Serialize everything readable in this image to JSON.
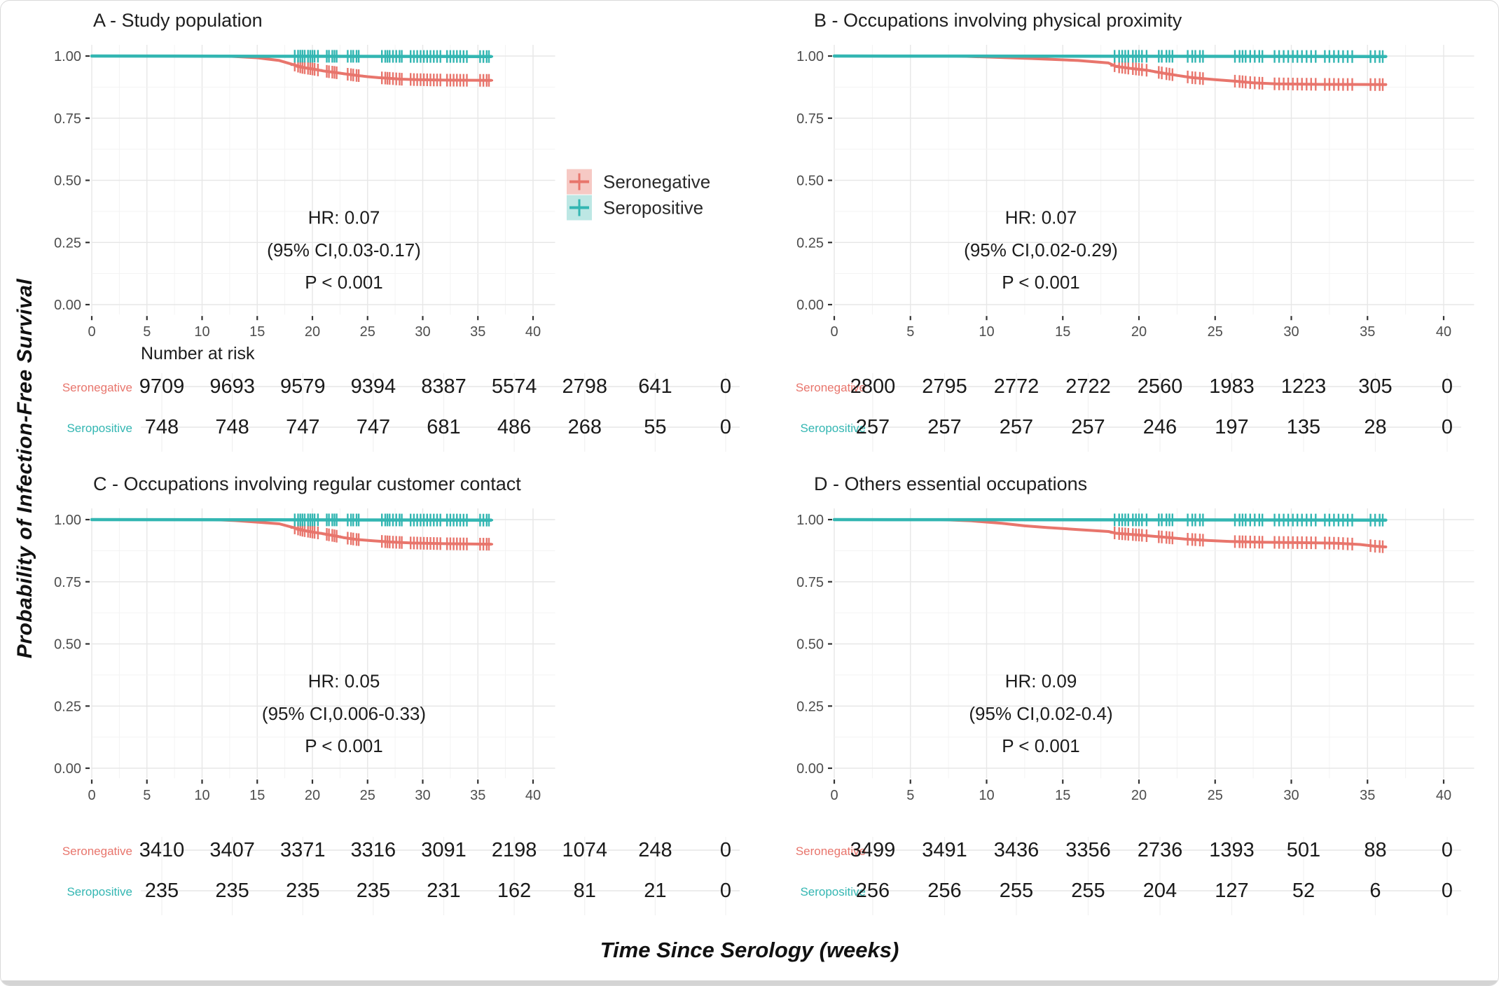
{
  "figure": {
    "ylabel": "Probability of Infection-Free Survival",
    "xlabel": "Time Since Serology (weeks)",
    "number_at_risk_label": "Number at risk",
    "colors": {
      "seronegative": "#E8756C",
      "seropositive": "#33B6B2",
      "seronegative_fill": "#F6C9C4",
      "seropositive_fill": "#BDE7E4",
      "tick_text": "#4d4d4d",
      "grid_major": "#e7e7e7",
      "grid_minor": "#f3f3f3",
      "annotation_text": "#1c1c1c",
      "risk_number_text": "#1a1a1a"
    },
    "legend": [
      {
        "label": "Seronegative"
      },
      {
        "label": "Seropositive"
      }
    ],
    "x_ticks": [
      0,
      5,
      10,
      15,
      20,
      25,
      30,
      35,
      40
    ],
    "y_ticks": [
      "1.00",
      "0.75",
      "0.50",
      "0.25",
      "0.00"
    ],
    "censor_x": [
      18.4,
      18.7,
      18.9,
      19.1,
      19.3,
      19.6,
      19.8,
      20.0,
      20.2,
      20.5,
      21.3,
      21.5,
      21.8,
      22.0,
      22.2,
      23.2,
      23.5,
      23.7,
      24.0,
      24.2,
      26.3,
      26.6,
      26.8,
      27.0,
      27.3,
      27.6,
      27.9,
      28.1,
      28.9,
      29.2,
      29.5,
      29.8,
      30.1,
      30.4,
      30.7,
      31.0,
      31.3,
      31.6,
      32.2,
      32.5,
      32.8,
      33.1,
      33.4,
      33.7,
      34.0,
      35.2,
      35.5,
      35.8,
      36.0
    ]
  },
  "chart_data": [
    {
      "id": "A",
      "type": "line",
      "title": "A - Study population",
      "hr": "HR: 0.07",
      "ci": "(95% CI,0.03-0.17)",
      "p": "P < 0.001",
      "show_legend": true,
      "show_number_at_risk": true,
      "xlim": [
        0,
        42
      ],
      "ylim": [
        0,
        1.05
      ],
      "series": [
        {
          "name": "Seronegative",
          "points": [
            [
              0,
              1
            ],
            [
              12,
              1
            ],
            [
              13,
              0.998
            ],
            [
              15,
              0.993
            ],
            [
              17,
              0.982
            ],
            [
              18.3,
              0.965
            ],
            [
              19,
              0.955
            ],
            [
              20,
              0.948
            ],
            [
              21,
              0.94
            ],
            [
              22,
              0.934
            ],
            [
              23,
              0.928
            ],
            [
              24,
              0.922
            ],
            [
              25,
              0.917
            ],
            [
              26,
              0.913
            ],
            [
              27,
              0.91
            ],
            [
              28,
              0.907
            ],
            [
              29.5,
              0.905
            ],
            [
              32,
              0.903
            ],
            [
              36.2,
              0.902
            ]
          ]
        },
        {
          "name": "Seropositive",
          "points": [
            [
              0,
              1
            ],
            [
              20,
              0.999
            ],
            [
              36.2,
              0.998
            ]
          ]
        }
      ],
      "risk_table": [
        {
          "label": "Seronegative",
          "values": [
            "9709",
            "9693",
            "9579",
            "9394",
            "8387",
            "5574",
            "2798",
            "641",
            "0"
          ]
        },
        {
          "label": "Seropositive",
          "values": [
            "748",
            "748",
            "747",
            "747",
            "681",
            "486",
            "268",
            "55",
            "0"
          ]
        }
      ]
    },
    {
      "id": "B",
      "type": "line",
      "title": "B - Occupations involving physical proximity",
      "hr": "HR: 0.07",
      "ci": "(95% CI,0.02-0.29)",
      "p": "P < 0.001",
      "show_legend": false,
      "show_number_at_risk": false,
      "xlim": [
        0,
        42
      ],
      "ylim": [
        0,
        1.05
      ],
      "series": [
        {
          "name": "Seronegative",
          "points": [
            [
              0,
              1
            ],
            [
              8,
              1
            ],
            [
              10,
              0.996
            ],
            [
              13,
              0.99
            ],
            [
              16,
              0.982
            ],
            [
              18,
              0.972
            ],
            [
              18.5,
              0.958
            ],
            [
              19.5,
              0.95
            ],
            [
              20.5,
              0.943
            ],
            [
              21.5,
              0.932
            ],
            [
              22.5,
              0.922
            ],
            [
              23.5,
              0.913
            ],
            [
              25,
              0.905
            ],
            [
              26.5,
              0.898
            ],
            [
              27.5,
              0.892
            ],
            [
              29,
              0.888
            ],
            [
              32,
              0.886
            ],
            [
              36.2,
              0.885
            ]
          ]
        },
        {
          "name": "Seropositive",
          "points": [
            [
              0,
              1
            ],
            [
              36.2,
              0.998
            ]
          ]
        }
      ],
      "risk_table": [
        {
          "label": "Seronegative",
          "values": [
            "2800",
            "2795",
            "2772",
            "2722",
            "2560",
            "1983",
            "1223",
            "305",
            "0"
          ]
        },
        {
          "label": "Seropositive",
          "values": [
            "257",
            "257",
            "257",
            "257",
            "246",
            "197",
            "135",
            "28",
            "0"
          ]
        }
      ]
    },
    {
      "id": "C",
      "type": "line",
      "title": "C - Occupations involving regular customer contact",
      "hr": "HR: 0.05",
      "ci": "(95% CI,0.006-0.33)",
      "p": "P < 0.001",
      "show_legend": false,
      "show_number_at_risk": false,
      "xlim": [
        0,
        42
      ],
      "ylim": [
        0,
        1.05
      ],
      "series": [
        {
          "name": "Seronegative",
          "points": [
            [
              0,
              1
            ],
            [
              11,
              1
            ],
            [
              13,
              0.996
            ],
            [
              15,
              0.99
            ],
            [
              17,
              0.983
            ],
            [
              18.3,
              0.968
            ],
            [
              19,
              0.958
            ],
            [
              20,
              0.95
            ],
            [
              21,
              0.943
            ],
            [
              22,
              0.935
            ],
            [
              22.8,
              0.928
            ],
            [
              24,
              0.92
            ],
            [
              25.5,
              0.915
            ],
            [
              27,
              0.91
            ],
            [
              29,
              0.906
            ],
            [
              32,
              0.903
            ],
            [
              36.2,
              0.901
            ]
          ]
        },
        {
          "name": "Seropositive",
          "points": [
            [
              0,
              1
            ],
            [
              36.2,
              0.998
            ]
          ]
        }
      ],
      "risk_table": [
        {
          "label": "Seronegative",
          "values": [
            "3410",
            "3407",
            "3371",
            "3316",
            "3091",
            "2198",
            "1074",
            "248",
            "0"
          ]
        },
        {
          "label": "Seropositive",
          "values": [
            "235",
            "235",
            "235",
            "235",
            "231",
            "162",
            "81",
            "21",
            "0"
          ]
        }
      ]
    },
    {
      "id": "D",
      "type": "line",
      "title": "D - Others essential occupations",
      "hr": "HR: 0.09",
      "ci": "(95% CI,0.02-0.4)",
      "p": "P < 0.001",
      "show_legend": false,
      "show_number_at_risk": false,
      "xlim": [
        0,
        42
      ],
      "ylim": [
        0,
        1.05
      ],
      "series": [
        {
          "name": "Seronegative",
          "points": [
            [
              0,
              1
            ],
            [
              7,
              1
            ],
            [
              9,
              0.995
            ],
            [
              11,
              0.985
            ],
            [
              12.5,
              0.975
            ],
            [
              14,
              0.968
            ],
            [
              16,
              0.96
            ],
            [
              18,
              0.952
            ],
            [
              18.5,
              0.945
            ],
            [
              20,
              0.938
            ],
            [
              21.5,
              0.93
            ],
            [
              23,
              0.922
            ],
            [
              24.5,
              0.916
            ],
            [
              26,
              0.912
            ],
            [
              28,
              0.909
            ],
            [
              31,
              0.907
            ],
            [
              33,
              0.905
            ],
            [
              34.5,
              0.9
            ],
            [
              35.5,
              0.893
            ],
            [
              36.2,
              0.89
            ]
          ]
        },
        {
          "name": "Seropositive",
          "points": [
            [
              0,
              1
            ],
            [
              36.2,
              0.998
            ]
          ]
        }
      ],
      "risk_table": [
        {
          "label": "Seronegative",
          "values": [
            "3499",
            "3491",
            "3436",
            "3356",
            "2736",
            "1393",
            "501",
            "88",
            "0"
          ]
        },
        {
          "label": "Seropositive",
          "values": [
            "256",
            "256",
            "255",
            "255",
            "204",
            "127",
            "52",
            "6",
            "0"
          ]
        }
      ]
    }
  ]
}
